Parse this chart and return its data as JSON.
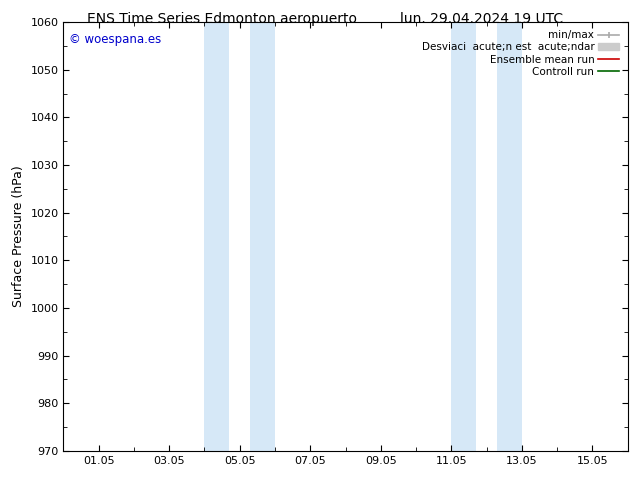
{
  "title_left": "ENS Time Series Edmonton aeropuerto",
  "title_right": "lun. 29.04.2024 19 UTC",
  "ylabel": "Surface Pressure (hPa)",
  "ylim": [
    970,
    1060
  ],
  "yticks": [
    970,
    980,
    990,
    1000,
    1010,
    1020,
    1030,
    1040,
    1050,
    1060
  ],
  "xtick_labels": [
    "01.05",
    "03.05",
    "05.05",
    "07.05",
    "09.05",
    "11.05",
    "13.05",
    "15.05"
  ],
  "xtick_positions": [
    1,
    3,
    5,
    7,
    9,
    11,
    13,
    15
  ],
  "xmin": 0,
  "xmax": 16,
  "shaded_bands": [
    {
      "x_start": 4.0,
      "x_end": 4.7
    },
    {
      "x_start": 5.3,
      "x_end": 6.0
    },
    {
      "x_start": 11.0,
      "x_end": 11.7
    },
    {
      "x_start": 12.3,
      "x_end": 13.0
    }
  ],
  "shade_color": "#d6e8f7",
  "watermark_text": "© woespana.es",
  "watermark_color": "#0000cc",
  "bg_color": "#ffffff",
  "title_fontsize": 10,
  "tick_fontsize": 8,
  "ylabel_fontsize": 9,
  "legend_label_minmax": "min/max",
  "legend_label_std": "Desviaci  acute;n est  acute;ndar",
  "legend_label_ensemble": "Ensemble mean run",
  "legend_label_control": "Controll run",
  "color_minmax": "#aaaaaa",
  "color_std": "#cccccc",
  "color_ensemble": "#cc0000",
  "color_control": "#006600"
}
